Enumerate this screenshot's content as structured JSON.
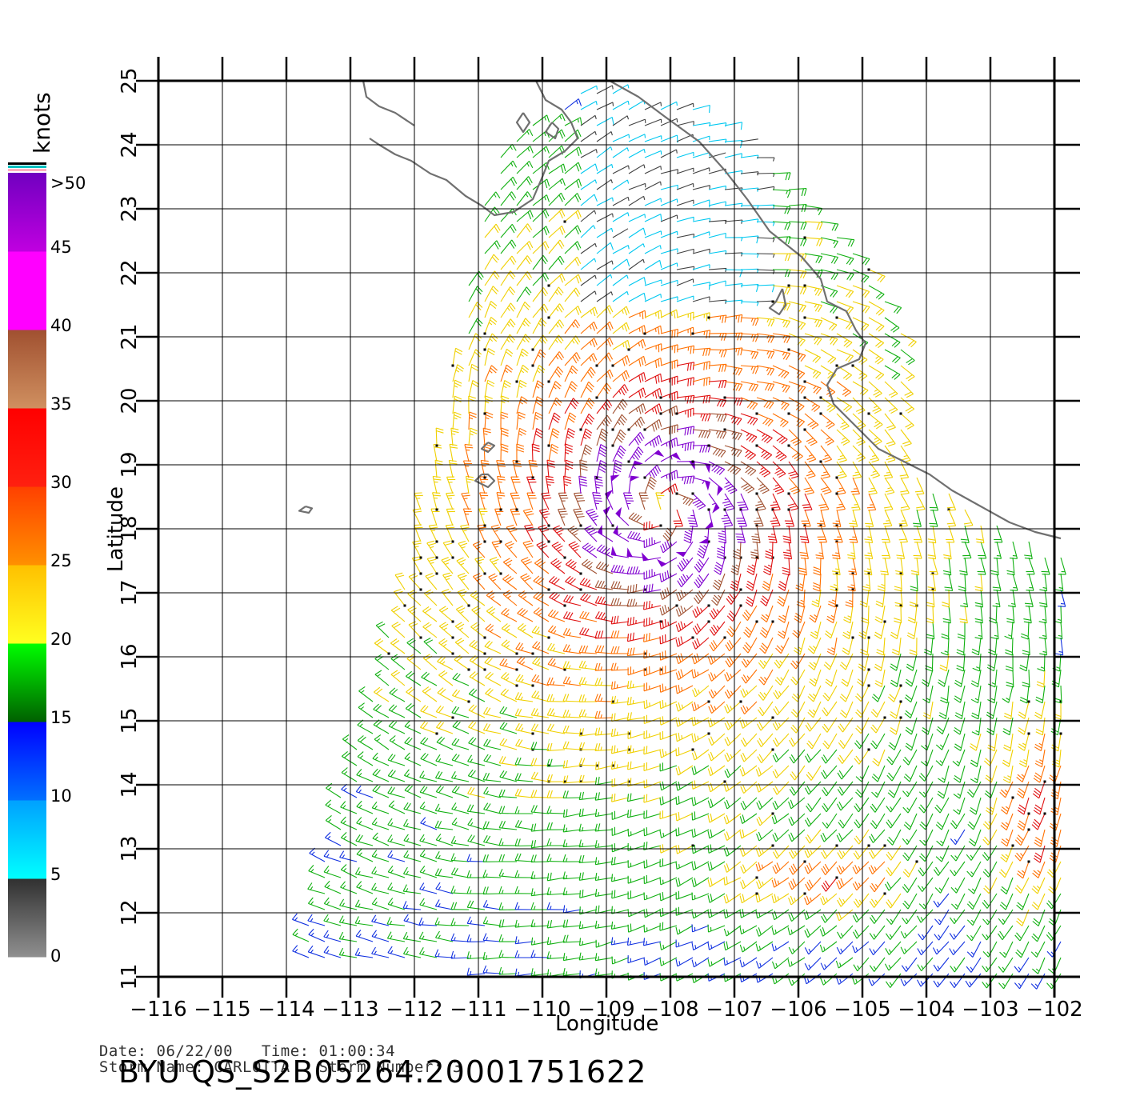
{
  "map": {
    "x_axis_label": "Longitude",
    "y_axis_label": "Latitude",
    "lon_range": [
      -116,
      -102
    ],
    "lat_range": [
      11,
      25
    ],
    "lon_ticks": [
      "−116",
      "−115",
      "−114",
      "−113",
      "−112",
      "−111",
      "−110",
      "−109",
      "−108",
      "−107",
      "−106",
      "−105",
      "−104",
      "−103",
      "−102"
    ],
    "lat_ticks": [
      "11",
      "12",
      "13",
      "14",
      "15",
      "16",
      "17",
      "18",
      "19",
      "20",
      "21",
      "22",
      "23",
      "24",
      "25"
    ],
    "storm_center": {
      "lon": -108.1,
      "lat": 18.3
    },
    "coastline_color": "#707070",
    "grid_color": "#000000"
  },
  "colorbar": {
    "unit_label": "knots",
    "labels": [
      ">50",
      "45",
      "40",
      "35",
      "30",
      "25",
      "20",
      "15",
      "10",
      "5",
      "0"
    ],
    "segments": [
      {
        "from": 0,
        "to": 5,
        "top": "#303030",
        "bottom": "#909090"
      },
      {
        "from": 5,
        "to": 10,
        "top": "#00a0ff",
        "bottom": "#00ffff"
      },
      {
        "from": 10,
        "to": 15,
        "top": "#0000ff",
        "bottom": "#0070ff"
      },
      {
        "from": 15,
        "to": 20,
        "top": "#00ff00",
        "bottom": "#006000"
      },
      {
        "from": 20,
        "to": 25,
        "top": "#ffc000",
        "bottom": "#ffff20"
      },
      {
        "from": 25,
        "to": 30,
        "top": "#ff4000",
        "bottom": "#ff9000"
      },
      {
        "from": 30,
        "to": 35,
        "top": "#ff0000",
        "bottom": "#ff2010"
      },
      {
        "from": 35,
        "to": 40,
        "top": "#a05030",
        "bottom": "#d09060"
      },
      {
        "from": 40,
        "to": 45,
        "top": "#ff00ff",
        "bottom": "#ff00ff"
      },
      {
        "from": 45,
        "to": 50,
        "top": "#7000c0",
        "bottom": "#c000e0"
      }
    ],
    "cap_colors": [
      "#ffb0c0",
      "#00c0c0",
      "#000000"
    ]
  },
  "speed_colors": [
    {
      "max": 5,
      "color": "#404040"
    },
    {
      "max": 10,
      "color": "#00c8f0"
    },
    {
      "max": 15,
      "color": "#1030e0"
    },
    {
      "max": 20,
      "color": "#10b010"
    },
    {
      "max": 25,
      "color": "#f0d000"
    },
    {
      "max": 30,
      "color": "#ff7000"
    },
    {
      "max": 35,
      "color": "#e01010"
    },
    {
      "max": 40,
      "color": "#a05030"
    },
    {
      "max": 999,
      "color": "#8000d0"
    }
  ],
  "metadata": {
    "date_label": "Date:",
    "date_value": "06/22/00",
    "time_label": "Time:",
    "time_value": "01:00:34",
    "storm_name_label": "Storm Name:",
    "storm_name_value": "CARLOTTA",
    "storm_number_label": "Storm Number:",
    "storm_number_value": "3"
  },
  "product_id": "BYU QS_S2B05264.20001751622"
}
